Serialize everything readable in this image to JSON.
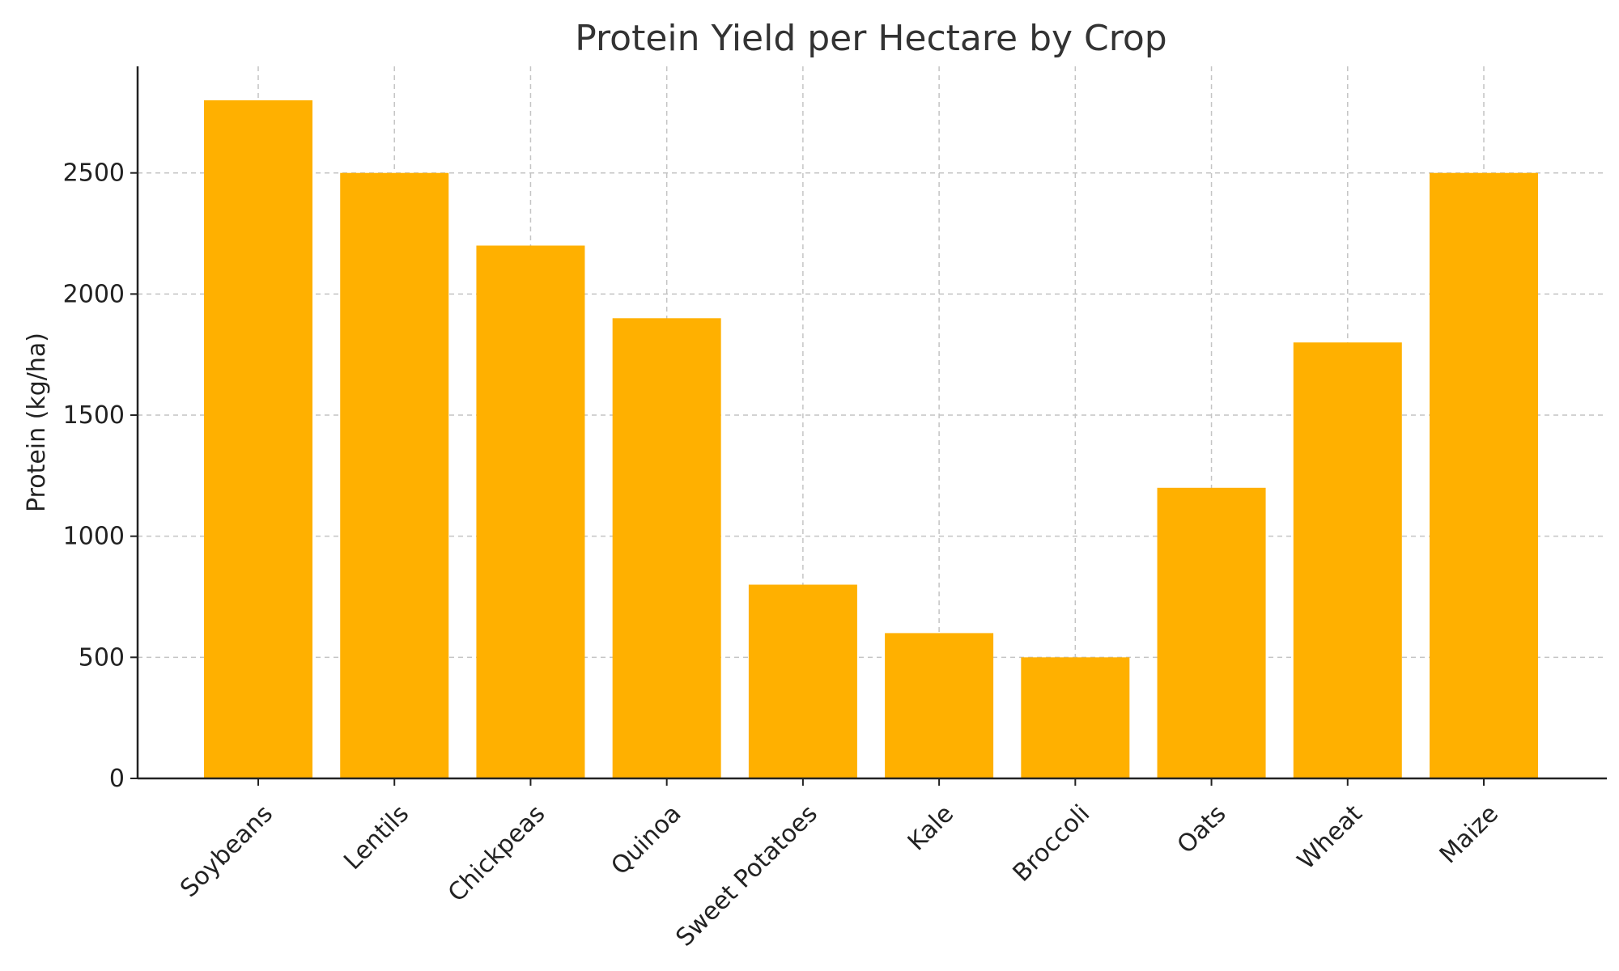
{
  "chart_data": {
    "type": "bar",
    "title": "Protein Yield per Hectare by Crop",
    "xlabel": "",
    "ylabel": "Protein (kg/ha)",
    "categories": [
      "Soybeans",
      "Lentils",
      "Chickpeas",
      "Quinoa",
      "Sweet Potatoes",
      "Kale",
      "Broccoli",
      "Oats",
      "Wheat",
      "Maize"
    ],
    "values": [
      2800,
      2500,
      2200,
      1900,
      800,
      600,
      500,
      1200,
      1800,
      2500
    ],
    "ylim": [
      0,
      2940
    ],
    "yticks": [
      0,
      500,
      1000,
      1500,
      2000,
      2500
    ],
    "ytick_labels": [
      "0",
      "500",
      "1000",
      "1500",
      "2000",
      "2500"
    ],
    "grid": true,
    "bar_color": "#FFB000",
    "legend": "none"
  }
}
